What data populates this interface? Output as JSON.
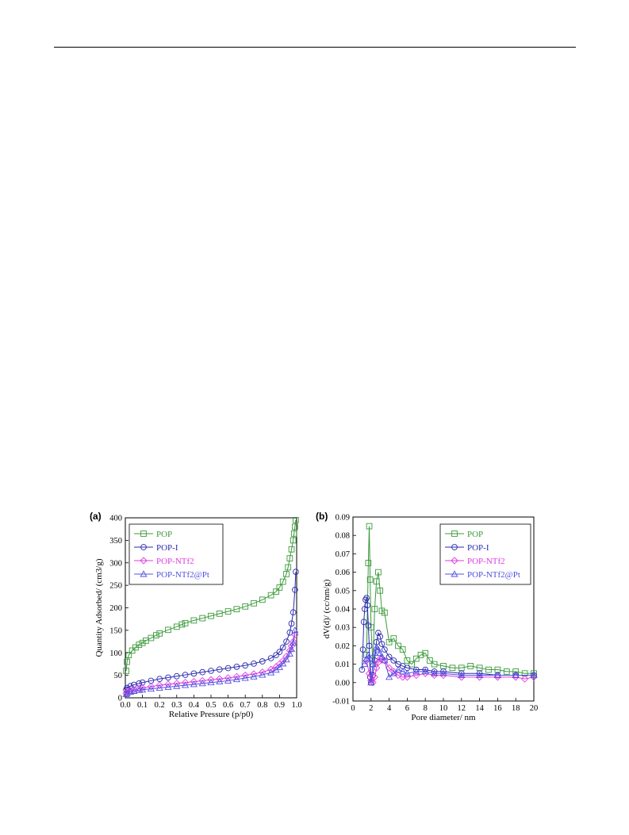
{
  "figure": {
    "panel_a_label": "(a)",
    "panel_b_label": "(b)"
  },
  "chart_data": [
    {
      "type": "scatter",
      "panel": "(a)",
      "title": "",
      "xlabel": "Relative  Pressure (p/p0)",
      "ylabel": "Quantity  Adsorbed/ (cm3/g)",
      "xlim": [
        0.0,
        1.0
      ],
      "ylim": [
        0,
        400
      ],
      "xticks": [
        "0.0",
        "0.1",
        "0.2",
        "0.3",
        "0.4",
        "0.5",
        "0.6",
        "0.7",
        "0.8",
        "0.9",
        "1.0"
      ],
      "yticks": [
        "0",
        "50",
        "100",
        "150",
        "200",
        "250",
        "300",
        "350",
        "400"
      ],
      "grid": false,
      "legend": "top-left",
      "series": [
        {
          "name": "POP",
          "color": "#3a9a3a",
          "marker": "square",
          "x": [
            0.005,
            0.01,
            0.02,
            0.04,
            0.06,
            0.08,
            0.1,
            0.12,
            0.15,
            0.18,
            0.2,
            0.25,
            0.3,
            0.33,
            0.35,
            0.4,
            0.45,
            0.5,
            0.55,
            0.6,
            0.65,
            0.7,
            0.75,
            0.8,
            0.85,
            0.88,
            0.9,
            0.92,
            0.94,
            0.95,
            0.96,
            0.97,
            0.98,
            0.985,
            0.99,
            0.995
          ],
          "y": [
            60,
            80,
            95,
            105,
            112,
            118,
            122,
            127,
            133,
            139,
            143,
            151,
            158,
            163,
            166,
            172,
            177,
            182,
            187,
            192,
            197,
            203,
            210,
            218,
            228,
            236,
            245,
            258,
            275,
            290,
            310,
            330,
            350,
            365,
            380,
            395
          ]
        },
        {
          "name": "POP-I",
          "color": "#2a2ab0",
          "marker": "circle",
          "x": [
            0.005,
            0.01,
            0.03,
            0.05,
            0.08,
            0.1,
            0.15,
            0.2,
            0.25,
            0.3,
            0.35,
            0.4,
            0.45,
            0.5,
            0.55,
            0.6,
            0.65,
            0.7,
            0.75,
            0.8,
            0.85,
            0.88,
            0.9,
            0.92,
            0.94,
            0.96,
            0.97,
            0.98,
            0.99,
            0.995
          ],
          "y": [
            18,
            22,
            26,
            29,
            32,
            34,
            38,
            42,
            45,
            48,
            51,
            54,
            57,
            60,
            63,
            66,
            69,
            72,
            76,
            81,
            88,
            95,
            102,
            112,
            125,
            145,
            165,
            190,
            240,
            280
          ]
        },
        {
          "name": "POP-NTf2",
          "color": "#e23ae0",
          "marker": "diamond",
          "x": [
            0.005,
            0.01,
            0.03,
            0.05,
            0.08,
            0.1,
            0.15,
            0.2,
            0.25,
            0.3,
            0.35,
            0.4,
            0.45,
            0.5,
            0.55,
            0.6,
            0.65,
            0.7,
            0.75,
            0.8,
            0.85,
            0.88,
            0.9,
            0.92,
            0.94,
            0.96,
            0.97,
            0.98,
            0.99
          ],
          "y": [
            10,
            13,
            16,
            18,
            20,
            22,
            25,
            28,
            30,
            32,
            34,
            36,
            38,
            40,
            42,
            44,
            47,
            50,
            53,
            57,
            63,
            69,
            75,
            82,
            92,
            105,
            115,
            125,
            140
          ]
        },
        {
          "name": "POP-NTf2@Pt",
          "color": "#5050e0",
          "marker": "triangle",
          "x": [
            0.005,
            0.01,
            0.03,
            0.05,
            0.08,
            0.1,
            0.15,
            0.2,
            0.25,
            0.3,
            0.35,
            0.4,
            0.45,
            0.5,
            0.55,
            0.6,
            0.65,
            0.7,
            0.75,
            0.8,
            0.85,
            0.88,
            0.9,
            0.92,
            0.94,
            0.96,
            0.97,
            0.98,
            0.99
          ],
          "y": [
            8,
            10,
            13,
            15,
            17,
            18,
            20,
            22,
            24,
            26,
            28,
            30,
            32,
            34,
            36,
            38,
            41,
            44,
            47,
            51,
            56,
            62,
            68,
            76,
            85,
            98,
            108,
            122,
            150
          ]
        }
      ]
    },
    {
      "type": "line",
      "panel": "(b)",
      "title": "",
      "xlabel": "Pore diameter/ nm",
      "ylabel": "dV(d)/ (cc/nm/g)",
      "xlim": [
        0,
        20
      ],
      "ylim": [
        -0.01,
        0.09
      ],
      "xticks": [
        "0",
        "2",
        "4",
        "6",
        "8",
        "10",
        "12",
        "14",
        "16",
        "18",
        "20"
      ],
      "yticks": [
        "-0.01",
        "0.00",
        "0.01",
        "0.02",
        "0.03",
        "0.04",
        "0.05",
        "0.06",
        "0.07",
        "0.08",
        "0.09"
      ],
      "grid": false,
      "legend": "top-right",
      "series": [
        {
          "name": "POP",
          "color": "#3a9a3a",
          "marker": "square",
          "x": [
            1.5,
            1.7,
            1.8,
            1.9,
            2.0,
            2.2,
            2.4,
            2.6,
            2.8,
            3.0,
            3.2,
            3.5,
            4.0,
            4.5,
            5.0,
            5.5,
            6.0,
            6.5,
            7.0,
            7.5,
            8.0,
            8.5,
            9.0,
            10,
            11,
            12,
            13,
            14,
            15,
            16,
            17,
            18,
            19,
            20
          ],
          "y": [
            0.015,
            0.065,
            0.085,
            0.056,
            0.03,
            0.01,
            0.04,
            0.055,
            0.06,
            0.05,
            0.039,
            0.038,
            0.022,
            0.024,
            0.02,
            0.018,
            0.012,
            0.01,
            0.013,
            0.015,
            0.016,
            0.012,
            0.01,
            0.009,
            0.008,
            0.008,
            0.009,
            0.008,
            0.007,
            0.007,
            0.006,
            0.006,
            0.005,
            0.005
          ]
        },
        {
          "name": "POP-I",
          "color": "#2a2ab0",
          "marker": "circle",
          "x": [
            1.0,
            1.1,
            1.2,
            1.3,
            1.4,
            1.5,
            1.6,
            1.7,
            1.8,
            1.9,
            2.0,
            2.2,
            2.4,
            2.6,
            2.8,
            3.0,
            3.2,
            3.5,
            4.0,
            4.5,
            5.0,
            5.5,
            6.0,
            7.0,
            8.0,
            9.0,
            10,
            12,
            14,
            16,
            18,
            20
          ],
          "y": [
            0.007,
            0.018,
            0.033,
            0.04,
            0.045,
            0.046,
            0.042,
            0.031,
            0.02,
            0.003,
            0.0,
            0.004,
            0.012,
            0.022,
            0.027,
            0.025,
            0.021,
            0.018,
            0.014,
            0.012,
            0.01,
            0.009,
            0.008,
            0.007,
            0.007,
            0.006,
            0.006,
            0.005,
            0.005,
            0.004,
            0.004,
            0.004
          ]
        },
        {
          "name": "POP-NTf2",
          "color": "#e23ae0",
          "marker": "diamond",
          "x": [
            1.5,
            1.8,
            2.0,
            2.2,
            2.4,
            2.6,
            2.8,
            3.0,
            3.2,
            3.5,
            4.0,
            4.5,
            5.0,
            5.5,
            6.0,
            7.0,
            8.0,
            9.0,
            10,
            12,
            14,
            16,
            18,
            19,
            20
          ],
          "y": [
            0.012,
            0.005,
            0.001,
            0.0,
            0.003,
            0.008,
            0.011,
            0.013,
            0.013,
            0.012,
            0.008,
            0.006,
            0.004,
            0.003,
            0.003,
            0.004,
            0.005,
            0.004,
            0.004,
            0.003,
            0.003,
            0.003,
            0.003,
            0.002,
            0.003
          ]
        },
        {
          "name": "POP-NTf2@Pt",
          "color": "#5050e0",
          "marker": "triangle",
          "x": [
            1.3,
            1.5,
            1.7,
            1.9,
            2.0,
            2.2,
            2.4,
            2.6,
            2.8,
            3.0,
            3.2,
            3.5,
            4.0,
            4.5,
            5.0,
            5.5,
            6.0,
            7.0,
            8.0,
            9.0,
            10,
            12,
            14,
            16,
            18,
            20
          ],
          "y": [
            0.01,
            0.013,
            0.015,
            0.013,
            0.0,
            0.01,
            0.016,
            0.019,
            0.018,
            0.016,
            0.014,
            0.012,
            0.003,
            0.005,
            0.007,
            0.006,
            0.005,
            0.006,
            0.006,
            0.005,
            0.005,
            0.004,
            0.004,
            0.004,
            0.004,
            0.004
          ]
        }
      ]
    }
  ]
}
